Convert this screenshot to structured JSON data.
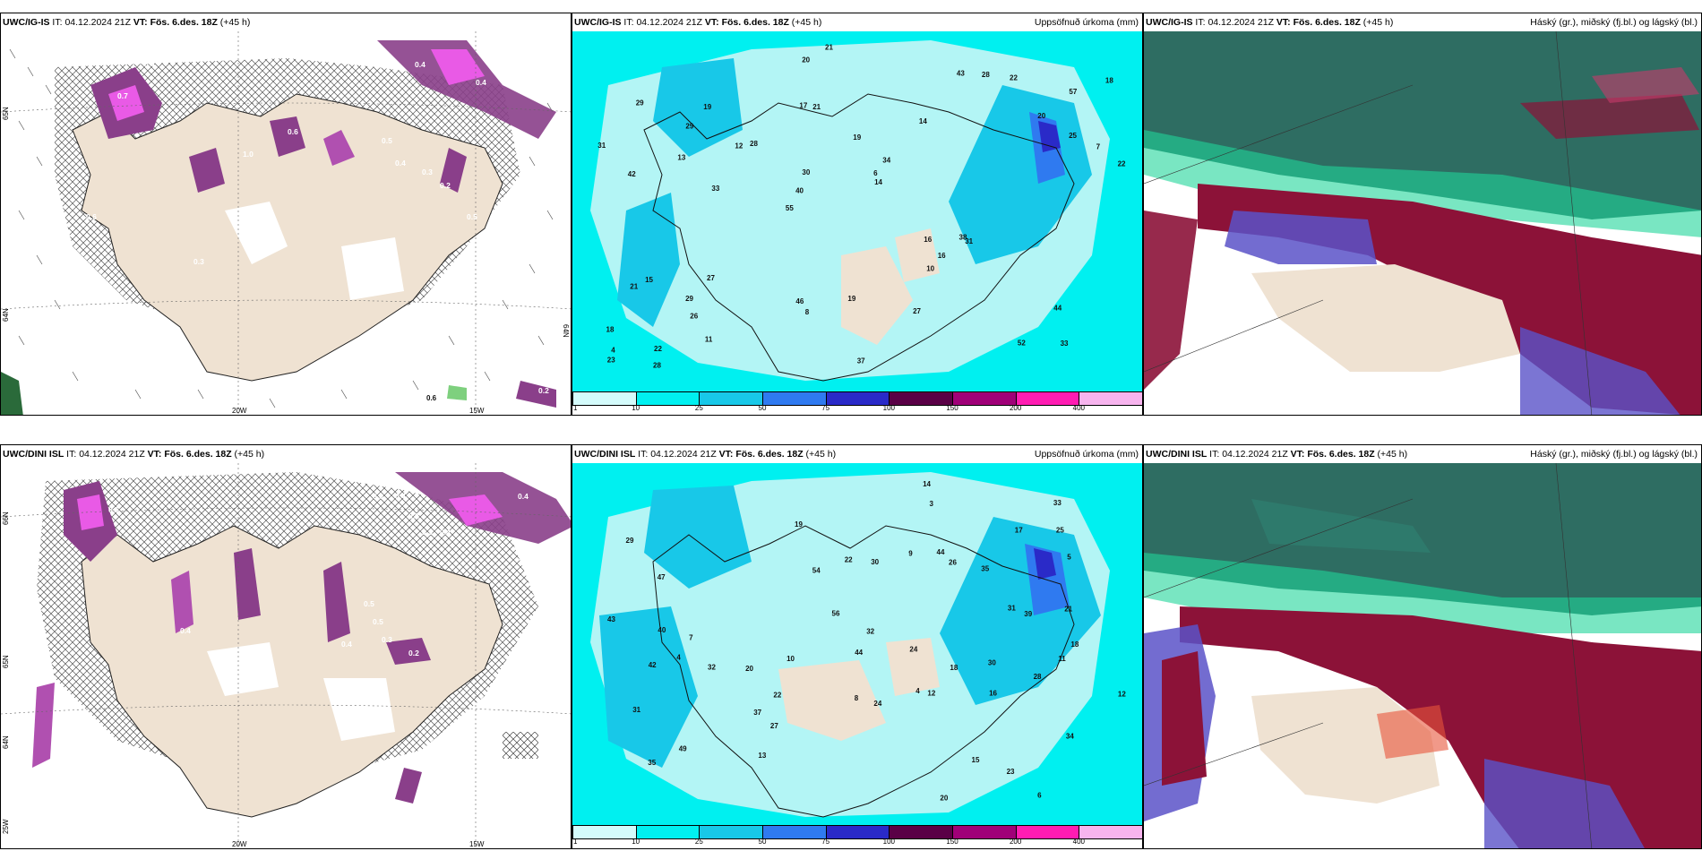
{
  "colors": {
    "land": "#efe2d2",
    "sea_cyan": "#00f0f0",
    "precip_light": "#b3f5f5",
    "purple": "#8a3f8a",
    "magenta": "#e95ae6",
    "cloud_dark": "#2e6d62",
    "cloud_maroon": "#8c1238",
    "cloud_blue": "#5a52c8",
    "cloud_green": "#1fd69a"
  },
  "colorbar": {
    "labels": [
      "1",
      "10",
      "25",
      "50",
      "75",
      "100",
      "150",
      "200",
      "400"
    ],
    "colors": [
      "#d4fbfb",
      "#00f0f0",
      "#18c8e8",
      "#2f7af0",
      "#2a2ac8",
      "#5a0046",
      "#a00078",
      "#ff1cb2",
      "#f7b4ee"
    ]
  },
  "top": {
    "left": {
      "model": "UWC/IG-IS",
      "it_label": "IT:",
      "it_value": "04.12.2024 21Z",
      "vt_label": "VT:",
      "vt_value": "Fös. 6.des. 18Z",
      "lead": "(+45 h)",
      "lat_labels": [
        "65N",
        "64N",
        "64N"
      ],
      "lon_labels": [
        "20W",
        "15W"
      ],
      "values": [
        "0.4",
        "0.4",
        "0.4",
        "0.7",
        "1.0",
        "0.6",
        "0.5",
        "0.4",
        "0.3",
        "0.2",
        "0.5",
        "0.6",
        "0.3",
        "0.2",
        "0.6"
      ]
    },
    "middle": {
      "model": "UWC/IG-IS",
      "it_label": "IT:",
      "it_value": "04.12.2024 21Z",
      "vt_label": "VT:",
      "vt_value": "Fös. 6.des. 18Z",
      "lead": "(+45 h)",
      "right_title": "Uppsöfnuð úrkoma (mm)",
      "values": [
        "33",
        "42",
        "57",
        "55",
        "14",
        "22",
        "17",
        "19",
        "15",
        "28",
        "18",
        "26",
        "21",
        "34",
        "31",
        "29",
        "20",
        "22",
        "16",
        "25",
        "40",
        "46",
        "30",
        "19",
        "43",
        "27",
        "52",
        "44",
        "38",
        "37",
        "12",
        "13",
        "10",
        "11",
        "7",
        "6",
        "4",
        "8",
        "14",
        "21",
        "20",
        "18",
        "16",
        "27",
        "29",
        "28",
        "23",
        "19",
        "22",
        "21",
        "33",
        "31",
        "29",
        "28"
      ]
    },
    "right": {
      "model": "UWC/IG-IS",
      "it_label": "IT:",
      "it_value": "04.12.2024 21Z",
      "vt_label": "VT:",
      "vt_value": "Fös. 6.des. 18Z",
      "lead": "(+45 h)",
      "right_title": "Háský (gr.), miðský (fj.bl.) og lágský (bl.)"
    }
  },
  "bottom": {
    "left": {
      "model": "UWC/DINI ISL",
      "it_label": "IT:",
      "it_value": "04.12.2024 21Z",
      "vt_label": "VT:",
      "vt_value": "Fös. 6.des. 18Z",
      "lead": "(+45 h)",
      "lat_labels": [
        "66N",
        "65N",
        "64N",
        "25W"
      ],
      "lon_labels": [
        "20W",
        "15W"
      ],
      "values": [
        "0.4",
        "0.6",
        "0.4",
        "0.2",
        "0.3",
        "0.4",
        "0.6",
        "0.5",
        "0.3",
        "0.4",
        "0.2",
        "0.4",
        "0.2",
        "0.4",
        "0.5"
      ]
    },
    "middle": {
      "model": "UWC/DINI ISL",
      "it_label": "IT:",
      "it_value": "04.12.2024 21Z",
      "vt_label": "VT:",
      "vt_value": "Fös. 6.des. 18Z",
      "lead": "(+45 h)",
      "right_title": "Uppsöfnuð úrkoma (mm)",
      "values": [
        "6",
        "4",
        "4",
        "29",
        "34",
        "47",
        "49",
        "20",
        "35",
        "22",
        "26",
        "23",
        "27",
        "19",
        "24",
        "31",
        "30",
        "32",
        "43",
        "35",
        "33",
        "30",
        "31",
        "12",
        "18",
        "40",
        "32",
        "44",
        "56",
        "25",
        "12",
        "42",
        "37",
        "44",
        "54",
        "28",
        "11",
        "15",
        "17",
        "20",
        "22",
        "24",
        "13",
        "14",
        "10",
        "7",
        "5",
        "3",
        "9",
        "8",
        "18",
        "21",
        "16",
        "39"
      ]
    },
    "right": {
      "model": "UWC/DINI ISL",
      "it_label": "IT:",
      "it_value": "04.12.2024 21Z",
      "vt_label": "VT:",
      "vt_value": "Fös. 6.des. 18Z",
      "lead": "(+45 h)",
      "right_title": "Háský (gr.), miðský (fj.bl.) og lágský (bl.)"
    }
  }
}
